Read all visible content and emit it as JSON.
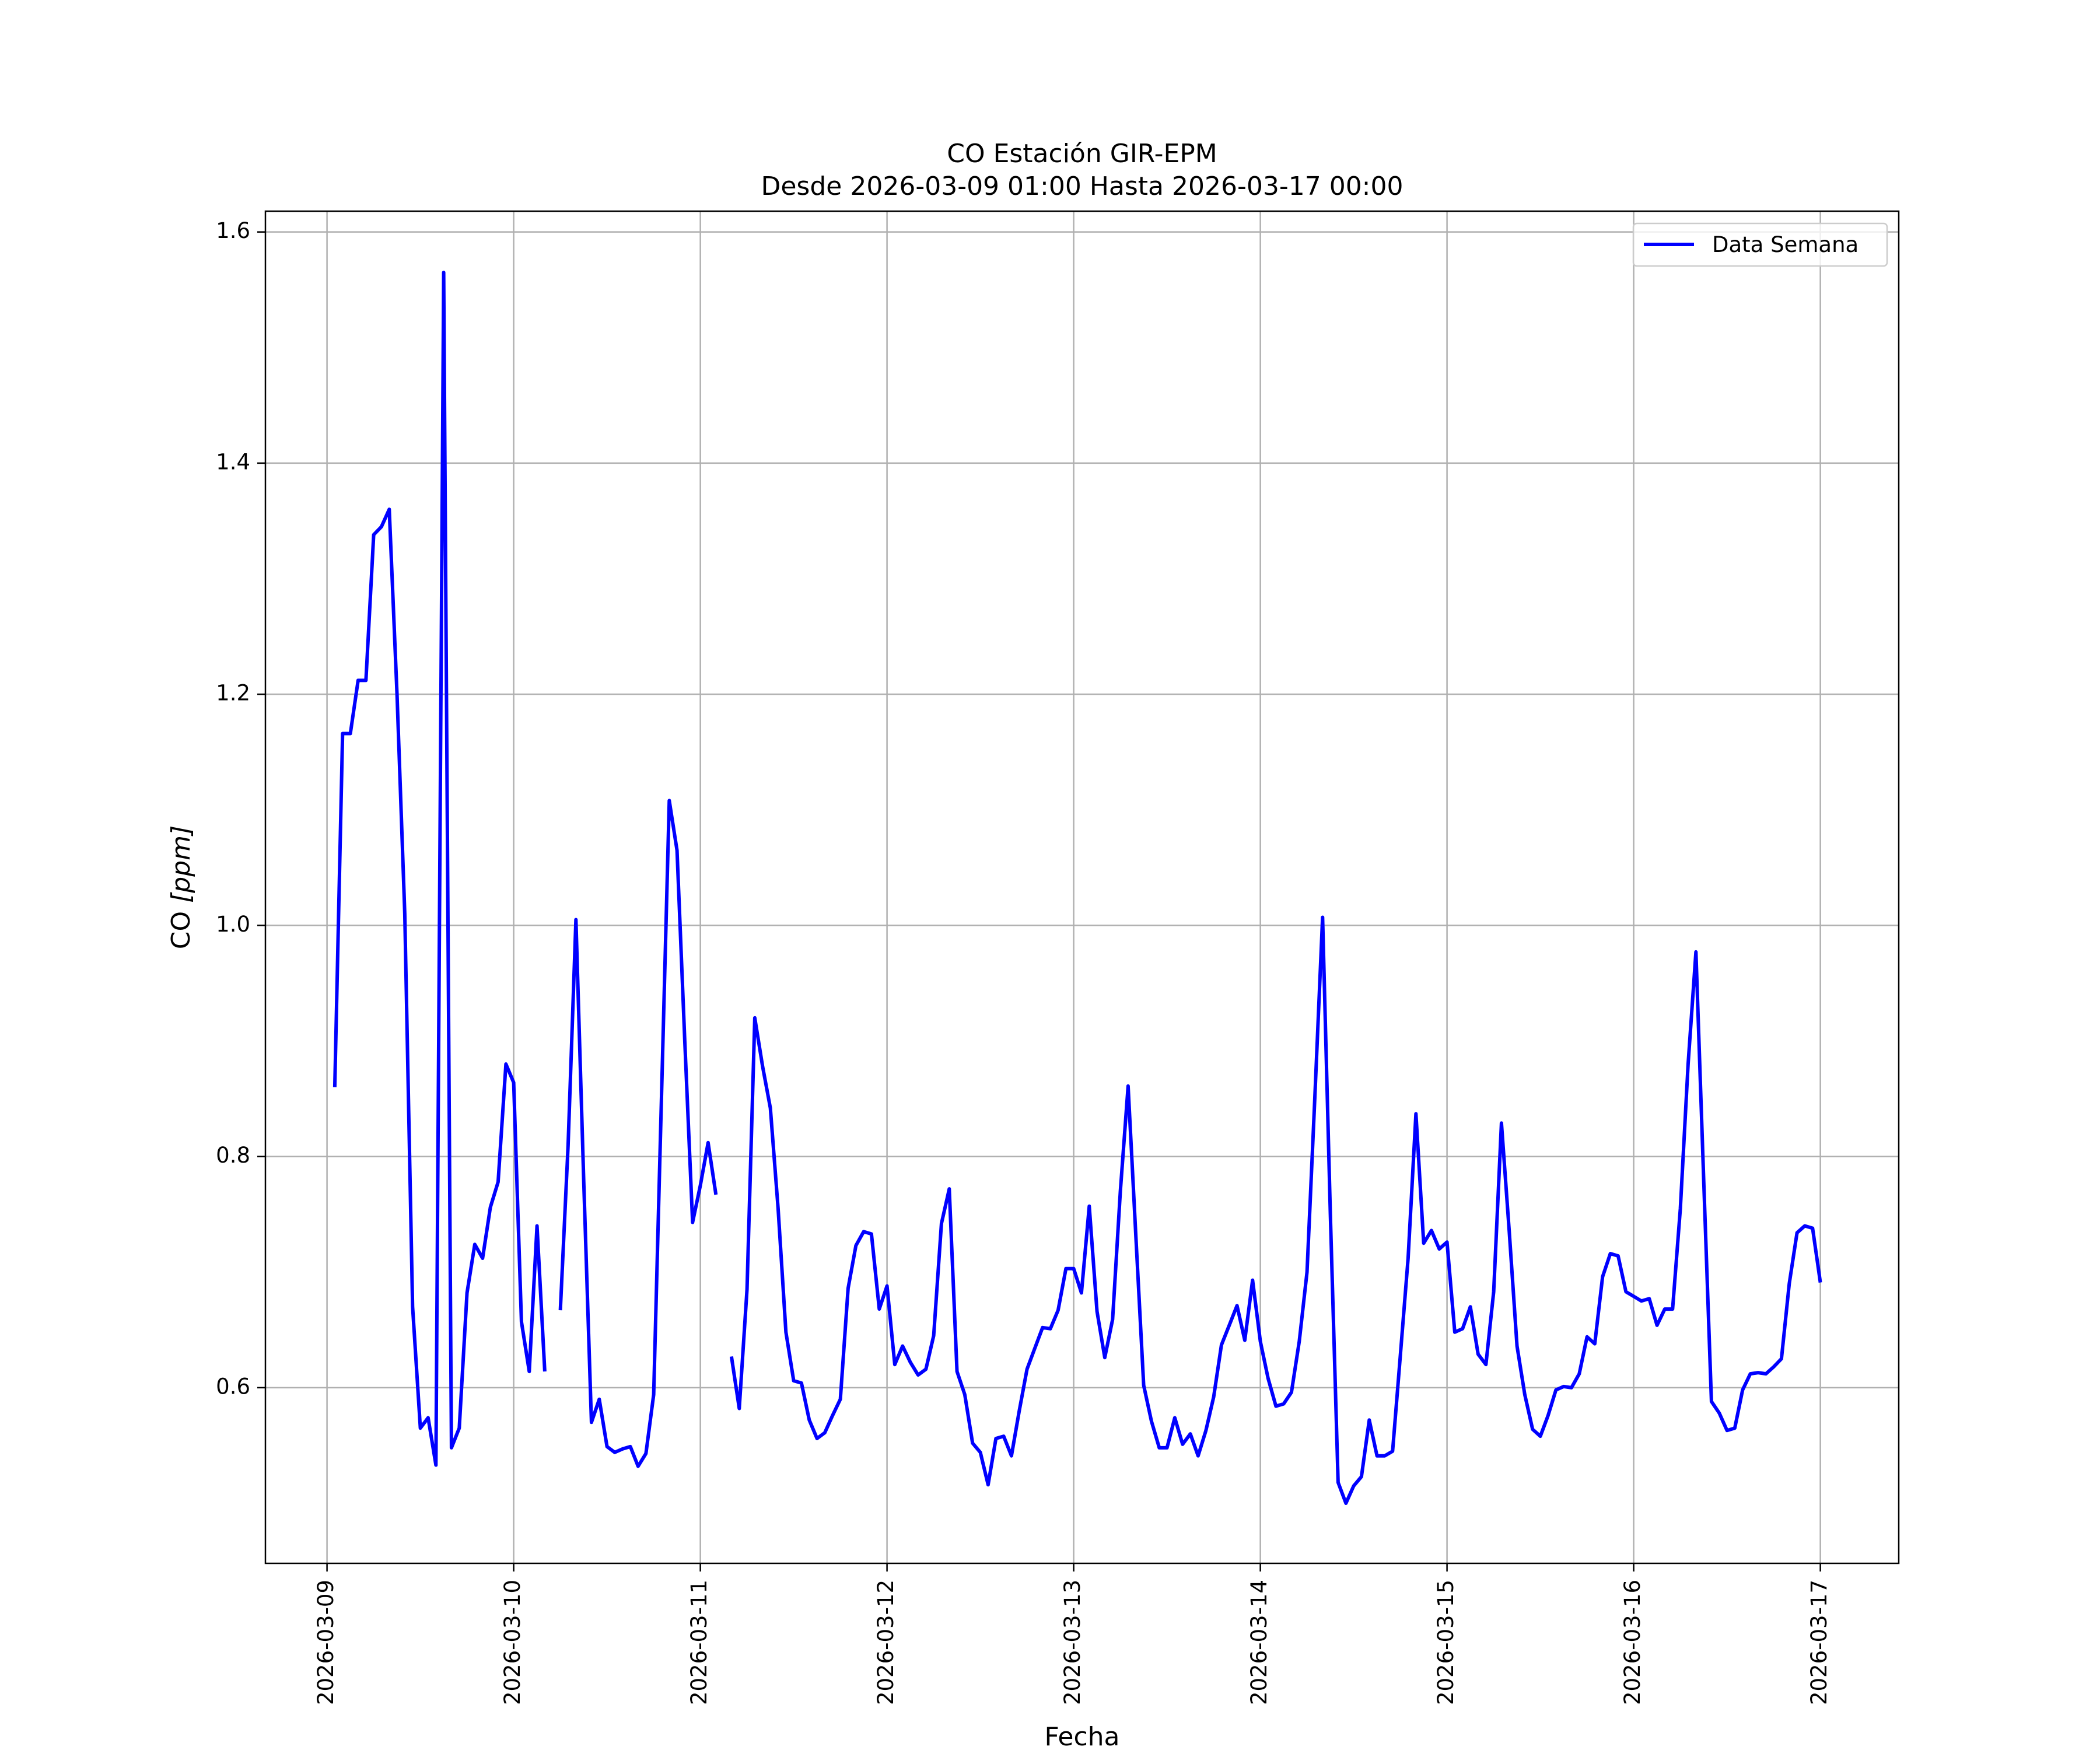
{
  "chart_data": {
    "type": "line",
    "title": "CO Estación GIR-EPM",
    "subtitle": "Desde 2026-03-09 01:00 Hasta 2026-03-17 00:00",
    "xlabel": "Fecha",
    "ylabel_prefix": "CO ",
    "ylabel_unit": "[ppm]",
    "x_start": "2026-03-09 00:00",
    "x_range_days": [
      -0.33,
      8.42
    ],
    "ylim": [
      0.448,
      1.618
    ],
    "x_ticks": [
      "2026-03-09",
      "2026-03-10",
      "2026-03-11",
      "2026-03-12",
      "2026-03-13",
      "2026-03-14",
      "2026-03-15",
      "2026-03-16",
      "2026-03-17"
    ],
    "y_ticks": [
      "0.6",
      "0.8",
      "1.0",
      "1.2",
      "1.4",
      "1.6"
    ],
    "grid": true,
    "legend_position": "top-right",
    "line_color": "#0000ff",
    "series": [
      {
        "name": "Data Semana",
        "color": "#0000ff",
        "values": [
          0.86,
          1.166,
          1.166,
          1.212,
          1.212,
          1.338,
          1.345,
          1.36,
          1.2,
          1.01,
          0.67,
          0.565,
          0.574,
          0.533,
          1.565,
          0.548,
          0.565,
          0.682,
          0.724,
          0.712,
          0.756,
          0.778,
          0.88,
          0.864,
          0.657,
          0.614,
          0.74,
          0.614,
          null,
          0.667,
          0.81,
          1.005,
          0.78,
          0.57,
          0.59,
          0.549,
          0.544,
          0.547,
          0.549,
          0.532,
          0.543,
          0.594,
          0.85,
          1.108,
          1.065,
          0.9,
          0.743,
          0.775,
          0.812,
          0.767,
          null,
          0.627,
          0.582,
          0.685,
          0.92,
          0.878,
          0.842,
          0.755,
          0.648,
          0.606,
          0.604,
          0.572,
          0.556,
          0.561,
          0.576,
          0.59,
          0.686,
          0.723,
          0.735,
          0.733,
          0.668,
          0.688,
          0.62,
          0.636,
          0.622,
          0.611,
          0.616,
          0.645,
          0.742,
          0.772,
          0.614,
          0.594,
          0.552,
          0.544,
          0.516,
          0.556,
          0.558,
          0.541,
          0.58,
          0.616,
          0.634,
          0.652,
          0.651,
          0.667,
          0.703,
          0.703,
          0.682,
          0.757,
          0.666,
          0.626,
          0.659,
          0.77,
          0.861,
          0.73,
          0.602,
          0.571,
          0.548,
          0.548,
          0.574,
          0.551,
          0.56,
          0.541,
          0.563,
          0.592,
          0.637,
          0.654,
          0.671,
          0.641,
          0.693,
          0.64,
          0.608,
          0.584,
          0.586,
          0.596,
          0.64,
          0.7,
          0.85,
          1.007,
          0.75,
          0.518,
          0.5,
          0.515,
          0.523,
          0.572,
          0.541,
          0.541,
          0.545,
          0.628,
          0.712,
          0.837,
          0.725,
          0.736,
          0.72,
          0.726,
          0.648,
          0.651,
          0.67,
          0.629,
          0.62,
          0.683,
          0.829,
          0.735,
          0.636,
          0.594,
          0.564,
          0.558,
          0.576,
          0.598,
          0.601,
          0.6,
          0.612,
          0.644,
          0.638,
          0.696,
          0.716,
          0.714,
          0.683,
          0.679,
          0.675,
          0.677,
          0.654,
          0.668,
          0.668,
          0.755,
          0.88,
          0.977,
          0.78,
          0.588,
          0.578,
          0.563,
          0.565,
          0.598,
          0.612,
          0.613,
          0.612,
          0.618,
          0.625,
          0.69,
          0.734,
          0.74,
          0.738,
          0.691
        ]
      }
    ]
  }
}
